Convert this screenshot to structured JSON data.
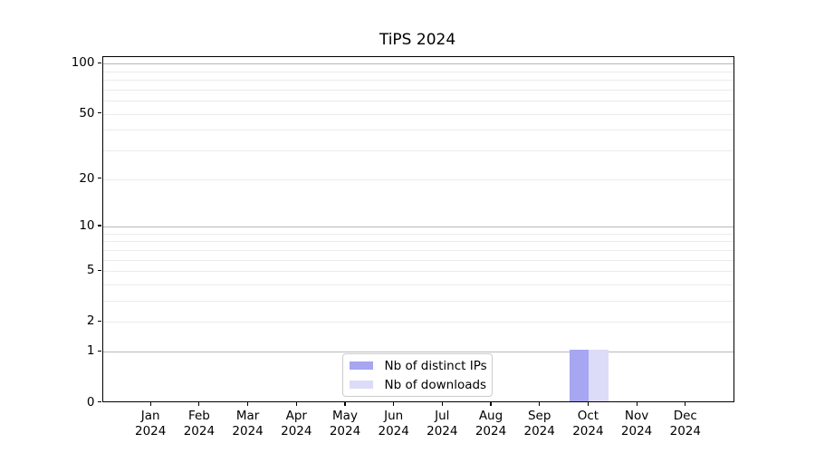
{
  "chart_data": {
    "type": "bar",
    "title": "TiPS 2024",
    "categories": [
      "Jan",
      "Feb",
      "Mar",
      "Apr",
      "May",
      "Jun",
      "Jul",
      "Aug",
      "Sep",
      "Oct",
      "Nov",
      "Dec"
    ],
    "year_label": "2024",
    "series": [
      {
        "name": "Nb of distinct IPs",
        "color": "#a6a6f2",
        "values": [
          0,
          0,
          0,
          0,
          0,
          0,
          0,
          0,
          0,
          1,
          0,
          0
        ]
      },
      {
        "name": "Nb of downloads",
        "color": "#dcdcf8",
        "values": [
          0,
          0,
          0,
          0,
          0,
          0,
          0,
          0,
          0,
          1,
          0,
          0
        ]
      }
    ],
    "xlabel": "",
    "ylabel": "",
    "y_scale": "log1p",
    "y_max": 110,
    "y_min": 0,
    "y_ticks": [
      100,
      50,
      20,
      10,
      5,
      2,
      1,
      0
    ],
    "grid_major": [
      100,
      10,
      1
    ],
    "grid_minor": [
      90,
      80,
      70,
      60,
      50,
      40,
      30,
      20,
      9,
      8,
      7,
      6,
      5,
      4,
      3,
      2
    ],
    "bar_width_ratio": 0.4,
    "legend_position": "lower-center",
    "colors": {
      "grid_major": "#b8b8b8",
      "grid_minor": "#ebebeb",
      "axis": "#000000",
      "text": "#000000",
      "background": "#ffffff",
      "legend_border": "#cccccc"
    }
  }
}
